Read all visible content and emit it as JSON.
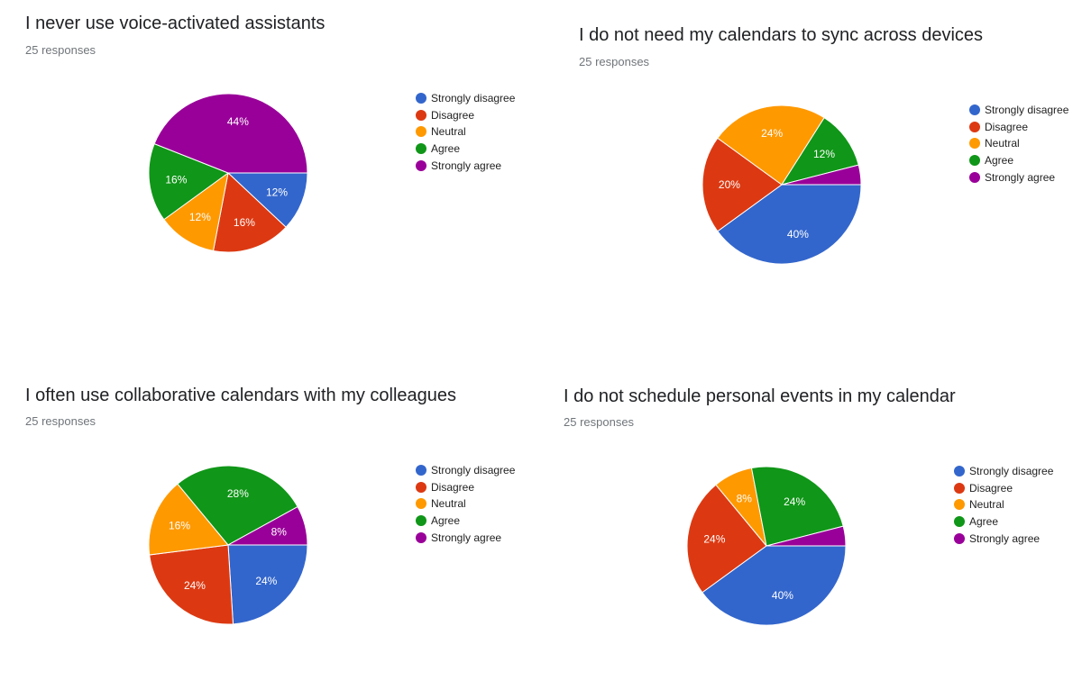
{
  "chart_data": [
    {
      "type": "pie",
      "title": "I never use voice-activated assistants",
      "subtitle": "25 responses",
      "categories": [
        "Strongly disagree",
        "Disagree",
        "Neutral",
        "Agree",
        "Strongly agree"
      ],
      "values": [
        12,
        16,
        12,
        16,
        44
      ],
      "data_labels": [
        "12%",
        "16%",
        "12%",
        "16%",
        "44%"
      ],
      "colors": [
        "#3366cc",
        "#dc3912",
        "#ff9900",
        "#109618",
        "#990099"
      ],
      "legend": "right"
    },
    {
      "type": "pie",
      "title": "I do not need my calendars to sync across devices",
      "subtitle": "25 responses",
      "categories": [
        "Strongly disagree",
        "Disagree",
        "Neutral",
        "Agree",
        "Strongly agree"
      ],
      "values": [
        40,
        20,
        24,
        12,
        4
      ],
      "data_labels": [
        "40%",
        "20%",
        "24%",
        "12%",
        ""
      ],
      "colors": [
        "#3366cc",
        "#dc3912",
        "#ff9900",
        "#109618",
        "#990099"
      ],
      "legend": "right"
    },
    {
      "type": "pie",
      "title": "I often use collaborative calendars with my colleagues",
      "subtitle": "25 responses",
      "categories": [
        "Strongly disagree",
        "Disagree",
        "Neutral",
        "Agree",
        "Strongly agree"
      ],
      "values": [
        24,
        24,
        16,
        28,
        8
      ],
      "data_labels": [
        "24%",
        "24%",
        "16%",
        "28%",
        "8%"
      ],
      "colors": [
        "#3366cc",
        "#dc3912",
        "#ff9900",
        "#109618",
        "#990099"
      ],
      "legend": "right"
    },
    {
      "type": "pie",
      "title": "I do not schedule personal events in my calendar",
      "subtitle": "25 responses",
      "categories": [
        "Strongly disagree",
        "Disagree",
        "Neutral",
        "Agree",
        "Strongly agree"
      ],
      "values": [
        40,
        24,
        8,
        24,
        4
      ],
      "data_labels": [
        "40%",
        "24%",
        "8%",
        "24%",
        ""
      ],
      "colors": [
        "#3366cc",
        "#dc3912",
        "#ff9900",
        "#109618",
        "#990099"
      ],
      "legend": "right"
    }
  ]
}
